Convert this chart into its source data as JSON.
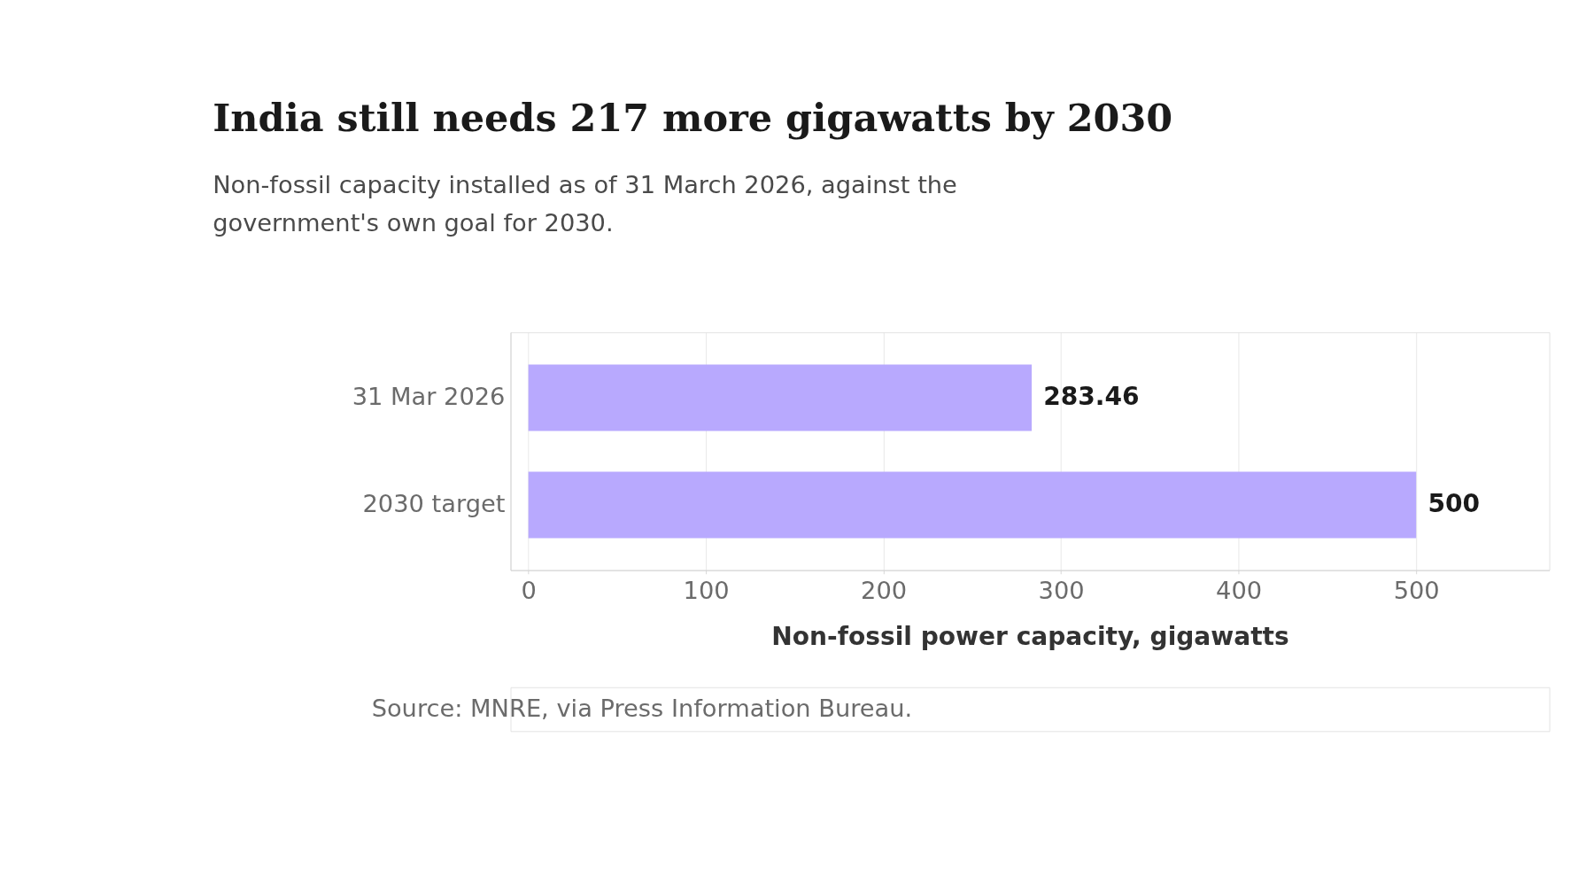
{
  "chart_data": {
    "type": "bar",
    "orientation": "horizontal",
    "title": "India still needs 217 more gigawatts by 2030",
    "subtitle": [
      "Non-fossil capacity installed as of 31 March 2026, against the",
      "government's own goal for 2030."
    ],
    "categories": [
      "31 Mar 2026",
      "2030 target"
    ],
    "values": [
      283.46,
      500
    ],
    "color": "#b8a9fe",
    "xlabel": "Non-fossil power capacity, gigawatts",
    "xlim": [
      -10,
      575
    ],
    "xticks": [
      0,
      100,
      200,
      300,
      400,
      500
    ],
    "grid": "x",
    "data_labels": true,
    "annotations": [
      "Source: MNRE, via Press Information Bureau."
    ]
  }
}
